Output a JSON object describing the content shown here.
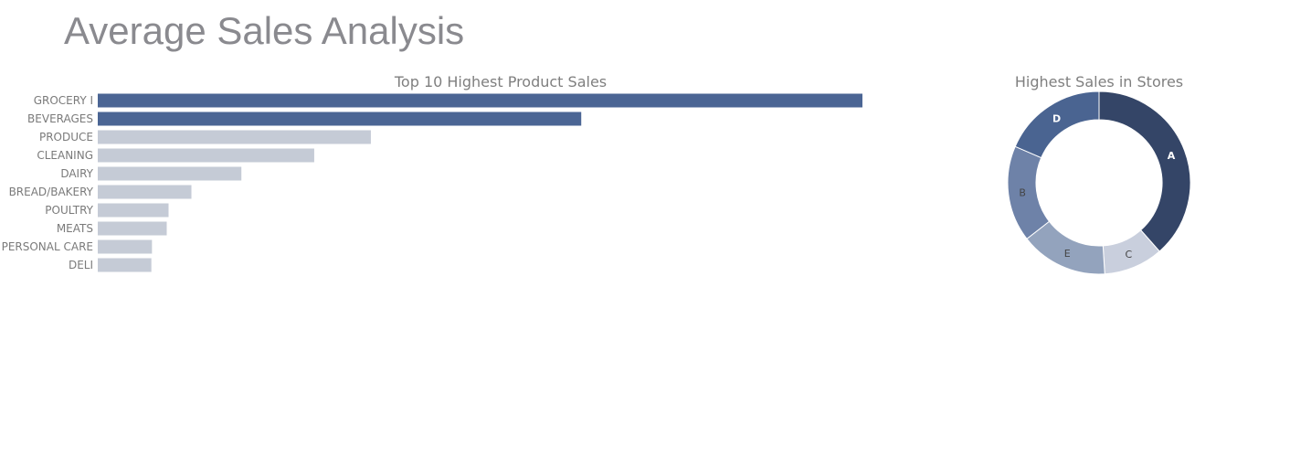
{
  "page": {
    "title": "Average Sales Analysis"
  },
  "chart_data": [
    {
      "type": "bar",
      "orientation": "horizontal",
      "title": "Top 10 Highest Product Sales",
      "categories": [
        "GROCERY I",
        "BEVERAGES",
        "PRODUCE",
        "CLEANING",
        "DAIRY",
        "BREAD/BAKERY",
        "POULTRY",
        "MEATS",
        "PERSONAL CARE",
        "DELI"
      ],
      "values": [
        3780,
        2390,
        1350,
        1070,
        710,
        463,
        350,
        341,
        268,
        265
      ],
      "colors": [
        "#4b6594",
        "#4b6594",
        "#c5cbd6",
        "#c5cbd6",
        "#c5cbd6",
        "#c5cbd6",
        "#c5cbd6",
        "#c5cbd6",
        "#c5cbd6",
        "#c5cbd6"
      ],
      "xlim": [
        0,
        3780
      ],
      "xaxis_visible": false,
      "grid": false
    },
    {
      "type": "pie",
      "hole": true,
      "title": "Highest Sales in Stores",
      "labels": [
        "A",
        "C",
        "E",
        "B",
        "D"
      ],
      "values": [
        38.5,
        10.5,
        15.5,
        17,
        18.5
      ],
      "colors": [
        "#344567",
        "#c9cfdd",
        "#93a3bd",
        "#6e82a8",
        "#4a6491"
      ],
      "label_colors": [
        "#ffffff",
        "#444444",
        "#444444",
        "#444444",
        "#ffffff"
      ],
      "direction": "clockwise",
      "start": "top"
    }
  ]
}
